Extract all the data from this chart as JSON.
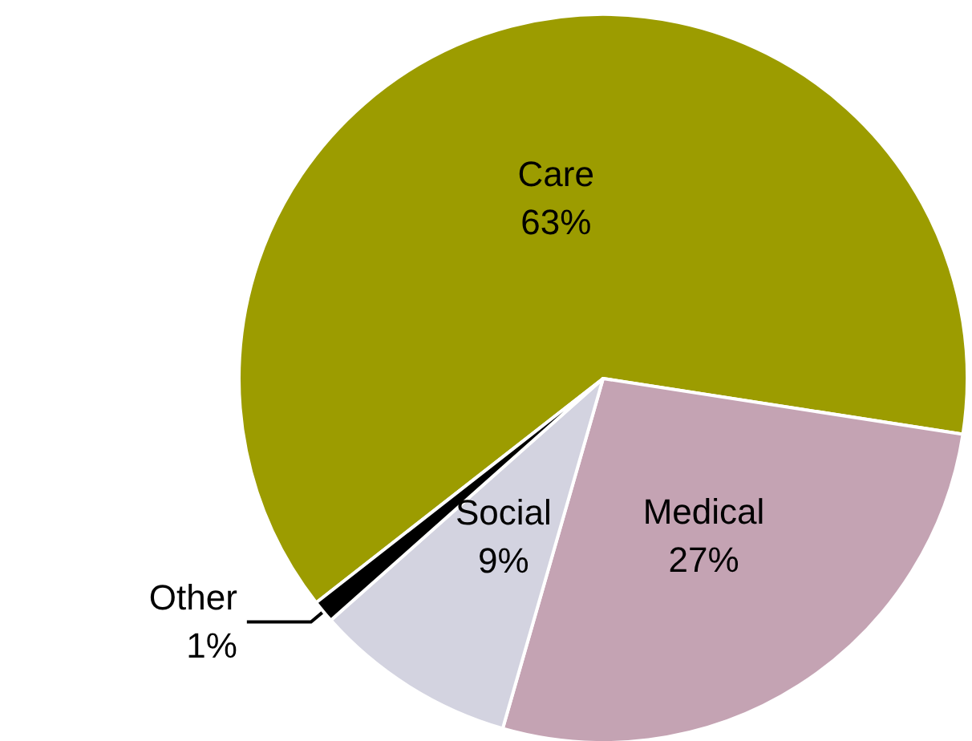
{
  "chart_data": {
    "type": "pie",
    "categories": [
      "Care",
      "Medical",
      "Social",
      "Other"
    ],
    "values": [
      63,
      27,
      9,
      1
    ],
    "colors": [
      "#9c9c00",
      "#c4a3b3",
      "#d3d3e0",
      "#000000"
    ],
    "value_labels": [
      "63%",
      "27%",
      "9%",
      "1%"
    ],
    "legend": false
  }
}
